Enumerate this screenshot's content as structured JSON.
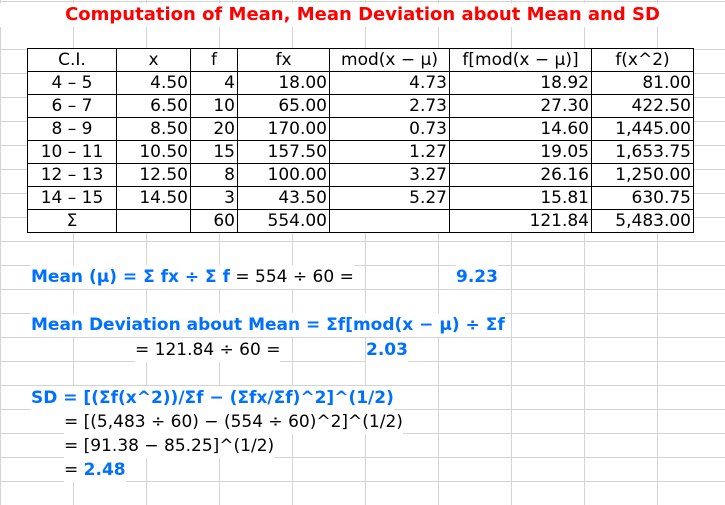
{
  "title": "Computation of Mean, Mean Deviation about Mean and SD",
  "table": {
    "headers": [
      "C.I.",
      "x",
      "f",
      "fx",
      "mod(x − μ)",
      "f[mod(x − μ)]",
      "f(x^2)"
    ],
    "rows": [
      [
        "4 – 5",
        "4.50",
        "4",
        "18.00",
        "4.73",
        "18.92",
        "81.00"
      ],
      [
        "6 – 7",
        "6.50",
        "10",
        "65.00",
        "2.73",
        "27.30",
        "422.50"
      ],
      [
        "8 – 9",
        "8.50",
        "20",
        "170.00",
        "0.73",
        "14.60",
        "1,445.00"
      ],
      [
        "10 – 11",
        "10.50",
        "15",
        "157.50",
        "1.27",
        "19.05",
        "1,653.75"
      ],
      [
        "12 – 13",
        "12.50",
        "8",
        "100.00",
        "3.27",
        "26.16",
        "1,250.00"
      ],
      [
        "14 – 15",
        "14.50",
        "3",
        "43.50",
        "5.27",
        "15.81",
        "630.75"
      ]
    ],
    "total": [
      "Σ",
      "",
      "60",
      "554.00",
      "",
      "121.84",
      "5,483.00"
    ]
  },
  "mean": {
    "label": "Mean (μ) = Σ fx ÷ Σ f",
    "expr": " = 554 ÷ 60 = ",
    "result": "9.23"
  },
  "md": {
    "label": "Mean Deviation about Mean = Σf[mod(x − μ) ÷ Σf",
    "expr": "= 121.84 ÷ 60 =",
    "result": "2.03"
  },
  "sd": {
    "label": "SD = [(Σf(x^2))/Σf − (Σfx/Σf)^2]^(1/2)",
    "line1": "= [(5,483 ÷ 60) − (554 ÷ 60)^2]^(1/2)",
    "line2": "= [91.38 − 85.25]^(1/2)",
    "line3_prefix": "= ",
    "result": "2.48"
  }
}
